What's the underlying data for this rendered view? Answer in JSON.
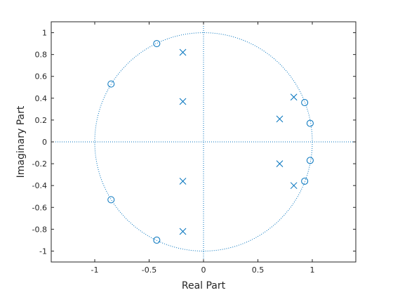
{
  "chart_data": {
    "type": "scatter",
    "title": "",
    "xlabel": "Real Part",
    "ylabel": "Imaginary Part",
    "xlim": [
      -1.4,
      1.4
    ],
    "ylim": [
      -1.1,
      1.1
    ],
    "x_ticks": [
      -1,
      -0.5,
      0,
      0.5,
      1
    ],
    "x_tick_labels": [
      "-1",
      "-0.5",
      "0",
      "0.5",
      "1"
    ],
    "y_ticks": [
      1,
      0.8,
      0.6,
      0.4,
      0.2,
      0,
      -0.2,
      -0.4,
      -0.6,
      -0.8,
      -1
    ],
    "y_tick_labels": [
      "1",
      "0.8",
      "0.6",
      "0.4",
      "0.2",
      "0",
      "-0.2",
      "-0.4",
      "-0.6",
      "-0.8",
      "-1"
    ],
    "grid": false,
    "unit_circle": true,
    "color": "#0072BD",
    "series": [
      {
        "marker": "o",
        "points": [
          {
            "x": -0.43,
            "y": 0.9
          },
          {
            "x": -0.85,
            "y": 0.53
          },
          {
            "x": -0.85,
            "y": -0.53
          },
          {
            "x": -0.43,
            "y": -0.9
          },
          {
            "x": 0.93,
            "y": 0.36
          },
          {
            "x": 0.98,
            "y": 0.17
          },
          {
            "x": 0.98,
            "y": -0.17
          },
          {
            "x": 0.93,
            "y": -0.36
          }
        ]
      },
      {
        "marker": "x",
        "points": [
          {
            "x": -0.19,
            "y": 0.82
          },
          {
            "x": -0.19,
            "y": 0.37
          },
          {
            "x": -0.19,
            "y": -0.36
          },
          {
            "x": -0.19,
            "y": -0.82
          },
          {
            "x": 0.83,
            "y": 0.41
          },
          {
            "x": 0.7,
            "y": 0.21
          },
          {
            "x": 0.7,
            "y": -0.2
          },
          {
            "x": 0.83,
            "y": -0.4
          }
        ]
      }
    ]
  }
}
